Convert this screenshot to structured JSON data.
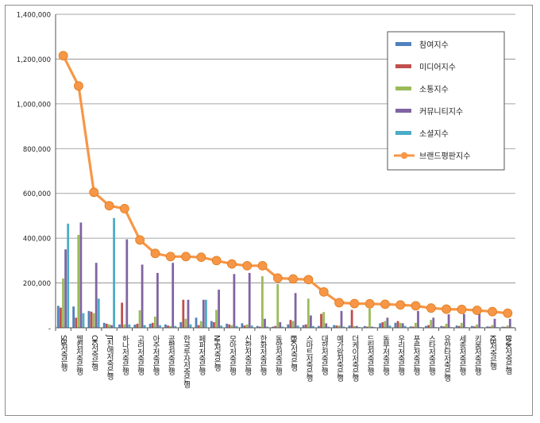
{
  "chart_data": {
    "type": "bar",
    "ylim": [
      0,
      1400000
    ],
    "yticks": [
      {
        "value": 0,
        "label": "-"
      },
      {
        "value": 200000,
        "label": "200,000"
      },
      {
        "value": 400000,
        "label": "400,000"
      },
      {
        "value": 600000,
        "label": "600,000"
      },
      {
        "value": 800000,
        "label": "800,000"
      },
      {
        "value": 1000000,
        "label": "1,000,000"
      },
      {
        "value": 1200000,
        "label": "1,200,000"
      },
      {
        "value": 1400000,
        "label": "1,400,000"
      }
    ],
    "grid": true,
    "legend_position": "top-right",
    "categories": [
      "SBI저축은행",
      "웰컴저축은행",
      "OK저축은행",
      "JT친애저축은행",
      "하나저축은행",
      "고려저축은행",
      "아주저축은행",
      "공평저축은행",
      "한국투자저축은행",
      "페퍼저축은행",
      "NH저축은행",
      "모아저축은행",
      "신한저축은행",
      "한화저축은행",
      "동양저축은행",
      "IBK저축은행",
      "스마트저축은행",
      "대한저축은행",
      "예가람저축은행",
      "더케이저축은행",
      "드림저축은행",
      "동부저축은행",
      "우리저축은행",
      "푸른저축은행",
      "스타저축은행",
      "유안타저축은행",
      "세종저축은행",
      "키움저축은행",
      "KB저축은행",
      "BNK저축은행"
    ],
    "series": [
      {
        "name": "참여지수",
        "color": "#4f81bd",
        "values": [
          98000,
          95000,
          75000,
          22000,
          15000,
          14000,
          18000,
          15000,
          25000,
          45000,
          30000,
          18000,
          20000,
          8000,
          5000,
          15000,
          12000,
          8000,
          12000,
          10000,
          8000,
          20000,
          22000,
          6000,
          8000,
          8000,
          10000,
          8000,
          6000,
          5000
        ]
      },
      {
        "name": "미디어지수",
        "color": "#c0504d",
        "values": [
          90000,
          45000,
          72000,
          18000,
          112000,
          18000,
          22000,
          10000,
          125000,
          12000,
          25000,
          15000,
          10000,
          5000,
          8000,
          35000,
          15000,
          62000,
          10000,
          80000,
          5000,
          25000,
          30000,
          5000,
          12000,
          6000,
          8000,
          6000,
          5000,
          4000
        ]
      },
      {
        "name": "소통지수",
        "color": "#9bbb59",
        "values": [
          220000,
          415000,
          65000,
          15000,
          15000,
          78000,
          50000,
          8000,
          40000,
          30000,
          80000,
          12000,
          15000,
          230000,
          195000,
          30000,
          130000,
          70000,
          10000,
          8000,
          85000,
          30000,
          22000,
          22000,
          35000,
          18000,
          22000,
          15000,
          12000,
          10000
        ]
      },
      {
        "name": "커뮤니티지수",
        "color": "#8064a2",
        "values": [
          350000,
          470000,
          290000,
          12000,
          395000,
          282000,
          245000,
          290000,
          125000,
          125000,
          170000,
          240000,
          245000,
          40000,
          25000,
          155000,
          55000,
          20000,
          75000,
          8000,
          5000,
          45000,
          20000,
          75000,
          45000,
          60000,
          62000,
          65000,
          40000,
          40000
        ]
      },
      {
        "name": "소셜지수",
        "color": "#4bacc6",
        "values": [
          465000,
          65000,
          130000,
          490000,
          15000,
          12000,
          12000,
          8000,
          15000,
          125000,
          10000,
          8000,
          10000,
          5000,
          5000,
          10000,
          8000,
          5000,
          5000,
          3000,
          3000,
          10000,
          8000,
          3000,
          3000,
          3000,
          3000,
          3000,
          3000,
          3000
        ]
      },
      {
        "name": "브랜드평판지수",
        "color": "#f79646",
        "type": "line",
        "values": [
          1215000,
          1080000,
          605000,
          545000,
          532000,
          392000,
          332000,
          318000,
          318000,
          315000,
          300000,
          285000,
          277000,
          277000,
          222000,
          218000,
          215000,
          160000,
          112000,
          108000,
          107000,
          105000,
          102000,
          98000,
          88000,
          83000,
          82000,
          78000,
          72000,
          65000
        ]
      }
    ]
  }
}
